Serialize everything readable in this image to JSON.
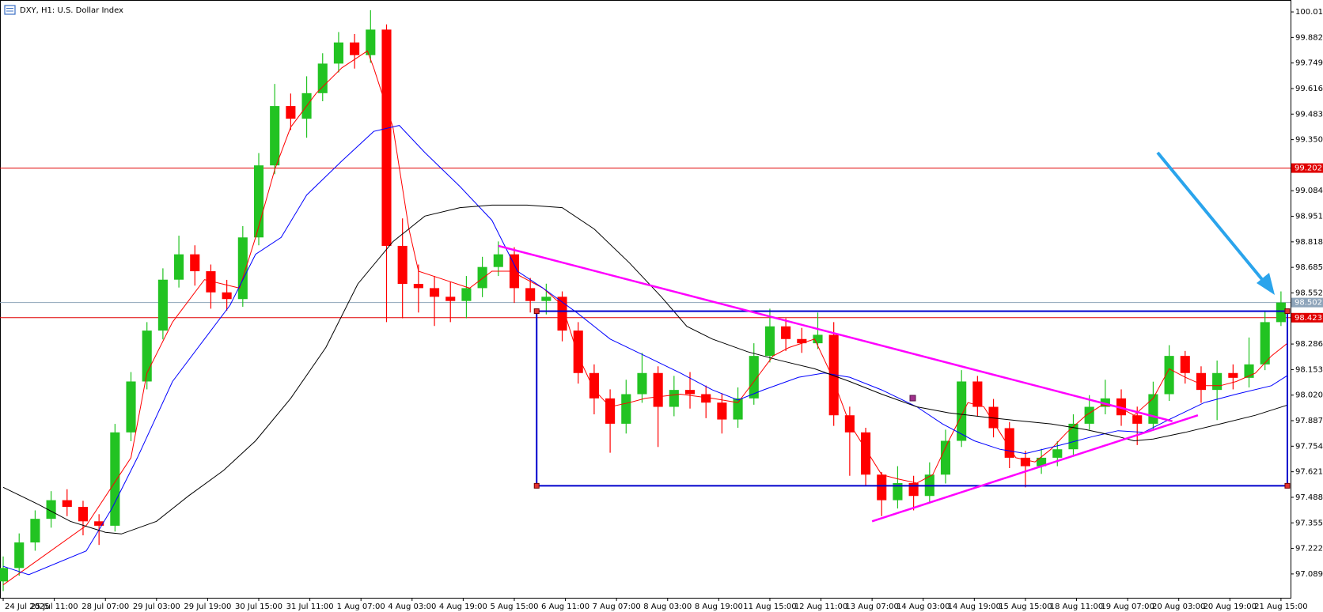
{
  "chart_data": {
    "type": "candlestick",
    "title": "DXY, H1:  U.S. Dollar Index",
    "up_color": "#22c322",
    "down_color": "#ff0000",
    "xlim": [
      -1,
      403
    ],
    "ylim": [
      96.965,
      100.077
    ],
    "xticks": [
      {
        "value": 0,
        "label": "24 Jul 2025"
      },
      {
        "value": 16,
        "label": "25 Jul 11:00"
      },
      {
        "value": 32,
        "label": "28 Jul 07:00"
      },
      {
        "value": 48,
        "label": "29 Jul 03:00"
      },
      {
        "value": 64,
        "label": "29 Jul 19:00"
      },
      {
        "value": 80,
        "label": "30 Jul 15:00"
      },
      {
        "value": 96,
        "label": "31 Jul 11:00"
      },
      {
        "value": 112,
        "label": "1 Aug 07:00"
      },
      {
        "value": 128,
        "label": "4 Aug 03:00"
      },
      {
        "value": 144,
        "label": "4 Aug 19:00"
      },
      {
        "value": 160,
        "label": "5 Aug 15:00"
      },
      {
        "value": 176,
        "label": "6 Aug 11:00"
      },
      {
        "value": 192,
        "label": "7 Aug 07:00"
      },
      {
        "value": 208,
        "label": "8 Aug 03:00"
      },
      {
        "value": 224,
        "label": "8 Aug 19:00"
      },
      {
        "value": 240,
        "label": "11 Aug 15:00"
      },
      {
        "value": 256,
        "label": "12 Aug 11:00"
      },
      {
        "value": 272,
        "label": "13 Aug 07:00"
      },
      {
        "value": 288,
        "label": "14 Aug 03:00"
      },
      {
        "value": 304,
        "label": "14 Aug 19:00"
      },
      {
        "value": 320,
        "label": "15 Aug 15:00"
      },
      {
        "value": 336,
        "label": "18 Aug 11:00"
      },
      {
        "value": 352,
        "label": "19 Aug 07:00"
      },
      {
        "value": 368,
        "label": "20 Aug 03:00"
      },
      {
        "value": 384,
        "label": "20 Aug 19:00"
      },
      {
        "value": 400,
        "label": "21 Aug 15:00"
      }
    ],
    "yticks": [
      100.015,
      99.882,
      99.749,
      99.616,
      99.483,
      {
        "value": 99.35,
        "label": "99.350"
      },
      99.084,
      98.951,
      98.818,
      98.685,
      98.552,
      98.286,
      98.153,
      {
        "value": 98.02,
        "label": "98.020"
      },
      97.887,
      97.754,
      97.621,
      97.488,
      97.355,
      97.222,
      97.089
    ],
    "x": [
      0,
      5,
      10,
      15,
      20,
      25,
      30,
      35,
      40,
      45,
      50,
      55,
      60,
      65,
      70,
      75,
      80,
      85,
      90,
      95,
      100,
      105,
      110,
      115,
      120,
      125,
      130,
      135,
      140,
      145,
      150,
      155,
      160,
      165,
      170,
      175,
      180,
      185,
      190,
      195,
      200,
      205,
      210,
      215,
      220,
      225,
      230,
      235,
      240,
      245,
      250,
      255,
      260,
      265,
      270,
      275,
      280,
      285,
      290,
      295,
      300,
      305,
      310,
      315,
      320,
      325,
      330,
      335,
      340,
      345,
      350,
      355,
      360,
      365,
      370,
      375,
      380,
      385,
      390,
      395,
      400
    ],
    "open": [
      97.05,
      97.12,
      97.253,
      97.376,
      97.473,
      97.438,
      97.363,
      97.34,
      97.826,
      98.091,
      98.356,
      98.621,
      98.753,
      98.665,
      98.555,
      98.52,
      98.841,
      99.216,
      99.525,
      99.459,
      99.592,
      99.746,
      99.856,
      99.79,
      99.923,
      98.797,
      98.599,
      98.577,
      98.532,
      98.51,
      98.577,
      98.687,
      98.753,
      98.577,
      98.51,
      98.532,
      98.356,
      98.135,
      98.003,
      97.871,
      98.025,
      98.135,
      97.959,
      98.047,
      98.025,
      97.981,
      97.893,
      98.003,
      98.224,
      98.378,
      98.312,
      98.29,
      98.334,
      97.915,
      97.826,
      97.606,
      97.473,
      97.562,
      97.495,
      97.606,
      97.782,
      98.091,
      97.959,
      97.848,
      97.694,
      97.65,
      97.694,
      97.738,
      97.871,
      97.959,
      98.003,
      97.915,
      97.871,
      98.025,
      98.224,
      98.135,
      98.047,
      98.135,
      98.11,
      98.18,
      98.4
    ],
    "high": [
      97.18,
      97.3,
      97.42,
      97.52,
      97.53,
      97.47,
      97.4,
      97.87,
      98.14,
      98.4,
      98.68,
      98.85,
      98.8,
      98.7,
      98.62,
      98.9,
      99.28,
      99.64,
      99.59,
      99.68,
      99.8,
      99.91,
      99.9,
      100.024,
      99.95,
      98.94,
      98.7,
      98.64,
      98.61,
      98.64,
      98.74,
      98.82,
      98.79,
      98.63,
      98.6,
      98.56,
      98.4,
      98.18,
      98.05,
      98.1,
      98.24,
      98.17,
      98.12,
      98.14,
      98.07,
      98.03,
      98.06,
      98.29,
      98.47,
      98.42,
      98.37,
      98.45,
      98.4,
      97.96,
      97.85,
      97.62,
      97.65,
      97.6,
      97.67,
      97.84,
      98.15,
      98.12,
      98,
      97.88,
      97.73,
      97.74,
      97.78,
      97.92,
      98.02,
      98.1,
      98.05,
      97.96,
      98.09,
      98.28,
      98.25,
      98.17,
      98.2,
      98.18,
      98.32,
      98.46,
      98.56
    ],
    "low": [
      97,
      97.08,
      97.21,
      97.33,
      97.39,
      97.29,
      97.24,
      97.31,
      97.78,
      98.05,
      98.31,
      98.58,
      98.59,
      98.47,
      98.46,
      98.48,
      98.8,
      99.17,
      99.4,
      99.36,
      99.55,
      99.7,
      99.72,
      99.75,
      98.4,
      98.42,
      98.45,
      98.38,
      98.4,
      98.42,
      98.53,
      98.64,
      98.5,
      98.45,
      98.44,
      98.3,
      98.08,
      97.92,
      97.72,
      97.82,
      97.98,
      97.75,
      97.91,
      97.95,
      97.9,
      97.82,
      97.85,
      97.97,
      98.19,
      98.25,
      98.24,
      98.26,
      97.86,
      97.6,
      97.55,
      97.39,
      97.43,
      97.42,
      97.46,
      97.56,
      97.75,
      97.91,
      97.8,
      97.64,
      97.54,
      97.61,
      97.65,
      97.71,
      97.84,
      97.92,
      97.86,
      97.76,
      97.84,
      97.99,
      98.08,
      97.98,
      97.89,
      98.05,
      98.06,
      98.15,
      98.38
    ],
    "close": [
      97.12,
      97.253,
      97.376,
      97.473,
      97.438,
      97.363,
      97.34,
      97.826,
      98.091,
      98.356,
      98.621,
      98.753,
      98.665,
      98.555,
      98.52,
      98.841,
      99.216,
      99.525,
      99.459,
      99.592,
      99.746,
      99.856,
      99.79,
      99.923,
      98.797,
      98.599,
      98.577,
      98.532,
      98.51,
      98.577,
      98.687,
      98.753,
      98.577,
      98.51,
      98.532,
      98.356,
      98.135,
      98.003,
      97.871,
      98.025,
      98.135,
      97.959,
      98.047,
      98.025,
      97.981,
      97.893,
      98.003,
      98.224,
      98.378,
      98.312,
      98.29,
      98.334,
      97.915,
      97.826,
      97.606,
      97.473,
      97.562,
      97.495,
      97.606,
      97.782,
      98.091,
      97.959,
      97.848,
      97.694,
      97.65,
      97.694,
      97.738,
      97.871,
      97.959,
      98.003,
      97.915,
      97.871,
      98.025,
      98.224,
      98.135,
      98.047,
      98.135,
      98.11,
      98.18,
      98.4,
      98.502
    ],
    "lines": [
      {
        "color": "#ff0000",
        "x": [
          0,
          26,
          40,
          45,
          53,
          63,
          74,
          79,
          85,
          90,
          98,
          106,
          114,
          116,
          122,
          127,
          130,
          138,
          146,
          153,
          159,
          169,
          175,
          180,
          185,
          190,
          196,
          201,
          212,
          222,
          230,
          235,
          241,
          246,
          254,
          259,
          265,
          270,
          275,
          280,
          286,
          291,
          296,
          302,
          307,
          312,
          317,
          323,
          328,
          333,
          339,
          344,
          349,
          354,
          360,
          365,
          370,
          376,
          381,
          386,
          392,
          397,
          402
        ],
        "values": [
          97.032,
          97.341,
          97.694,
          98.135,
          98.4,
          98.621,
          98.577,
          98.841,
          99.194,
          99.415,
          99.592,
          99.724,
          99.812,
          99.724,
          99.415,
          98.885,
          98.665,
          98.621,
          98.577,
          98.665,
          98.665,
          98.577,
          98.488,
          98.224,
          98.047,
          97.959,
          97.981,
          98.003,
          98.025,
          98.003,
          97.981,
          98.091,
          98.224,
          98.268,
          98.312,
          98.135,
          97.87,
          97.738,
          97.606,
          97.584,
          97.562,
          97.606,
          97.782,
          97.981,
          97.959,
          97.826,
          97.694,
          97.672,
          97.738,
          97.826,
          97.915,
          97.968,
          97.959,
          97.915,
          98.003,
          98.157,
          98.113,
          98.069,
          98.069,
          98.091,
          98.135,
          98.224,
          98.29
        ]
      },
      {
        "color": "#0000ff",
        "x": [
          0,
          8,
          26,
          34,
          42,
          53,
          63,
          71,
          79,
          87,
          95,
          106,
          116,
          124,
          132,
          143,
          153,
          161,
          169,
          180,
          190,
          201,
          212,
          222,
          230,
          238,
          249,
          257,
          265,
          275,
          286,
          294,
          304,
          312,
          320,
          331,
          341,
          349,
          357,
          365,
          376,
          386,
          397,
          402
        ],
        "values": [
          97.129,
          97.085,
          97.209,
          97.429,
          97.694,
          98.091,
          98.312,
          98.488,
          98.753,
          98.841,
          99.062,
          99.239,
          99.393,
          99.424,
          99.283,
          99.106,
          98.93,
          98.665,
          98.577,
          98.444,
          98.312,
          98.224,
          98.135,
          98.047,
          97.994,
          98.047,
          98.113,
          98.135,
          98.113,
          98.047,
          97.959,
          97.87,
          97.782,
          97.738,
          97.716,
          97.76,
          97.804,
          97.835,
          97.826,
          97.893,
          97.981,
          98.025,
          98.069,
          98.122
        ]
      },
      {
        "color": "#000000",
        "x": [
          0,
          11,
          21,
          32,
          37,
          48,
          58,
          69,
          79,
          90,
          101,
          111,
          122,
          132,
          143,
          153,
          164,
          175,
          185,
          196,
          206,
          214,
          222,
          233,
          243,
          254,
          265,
          275,
          286,
          296,
          307,
          317,
          328,
          339,
          349,
          354,
          360,
          370,
          381,
          392,
          402
        ],
        "values": [
          97.54,
          97.451,
          97.363,
          97.306,
          97.297,
          97.363,
          97.495,
          97.628,
          97.782,
          98.003,
          98.268,
          98.599,
          98.819,
          98.952,
          98.996,
          99.009,
          99.009,
          98.996,
          98.885,
          98.709,
          98.532,
          98.378,
          98.312,
          98.246,
          98.201,
          98.157,
          98.091,
          98.025,
          97.959,
          97.928,
          97.906,
          97.888,
          97.87,
          97.84,
          97.804,
          97.782,
          97.791,
          97.826,
          97.87,
          97.915,
          97.968
        ]
      }
    ],
    "levels": [
      {
        "value": 99.202,
        "color": "#e00000"
      },
      {
        "value": 98.423,
        "color": "#e00000"
      },
      {
        "value": 98.502,
        "color": "#8ea4ba"
      }
    ],
    "rectangle": {
      "color": "#0000cc",
      "x": [
        167,
        402
      ],
      "y": [
        97.548,
        98.457
      ]
    },
    "trendlines": [
      {
        "color": "#ff00ff",
        "x": [
          155,
          366
        ],
        "y": [
          98.797,
          97.884
        ]
      },
      {
        "color": "#ff00ff",
        "x": [
          272,
          374
        ],
        "y": [
          97.363,
          97.915
        ]
      }
    ]
  }
}
